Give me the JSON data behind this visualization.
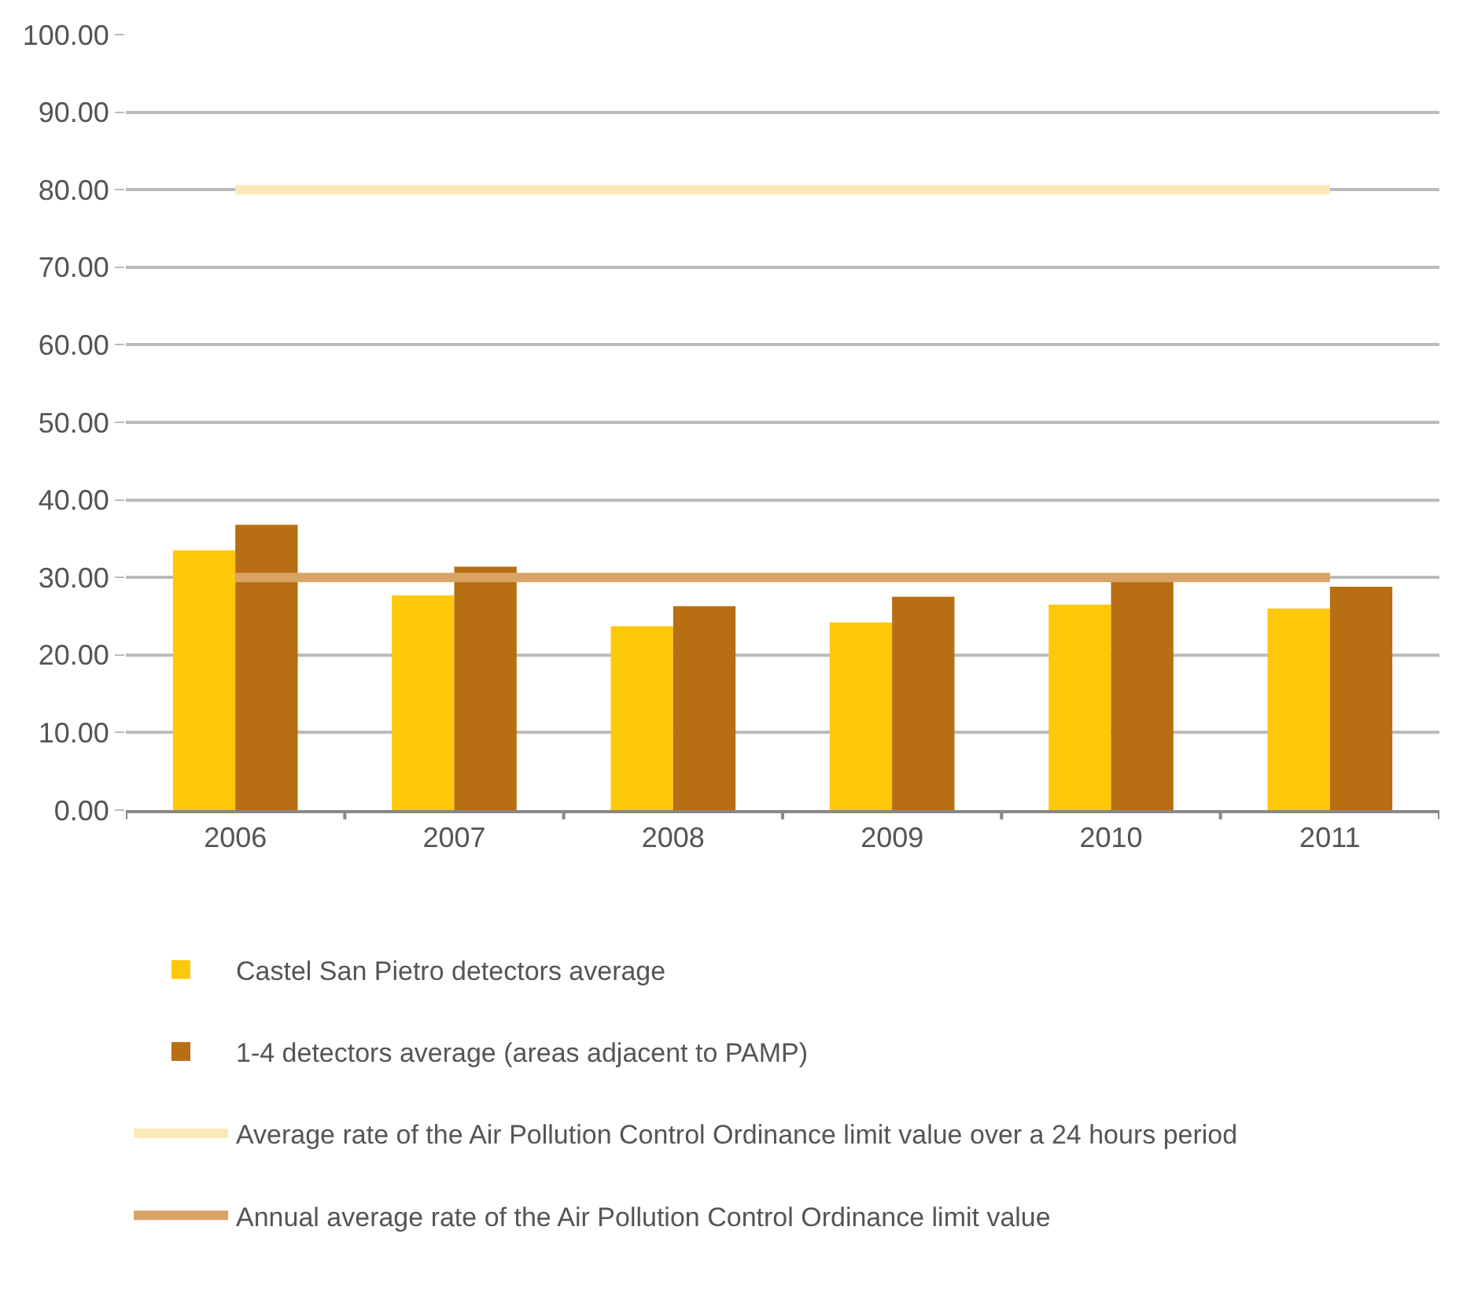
{
  "chart_data": {
    "type": "bar",
    "categories": [
      "2006",
      "2007",
      "2008",
      "2009",
      "2010",
      "2011"
    ],
    "series": [
      {
        "name": "Castel San Pietro detectors average",
        "color": "#fec80a",
        "values": [
          33.5,
          27.7,
          23.7,
          24.2,
          26.5,
          26.0
        ]
      },
      {
        "name": "1-4 detectors average (areas adjacent to PAMP)",
        "color": "#b86e12",
        "values": [
          36.8,
          31.4,
          26.3,
          27.5,
          29.8,
          28.8
        ]
      },
      {
        "name": "Average rate of the Air Pollution Control Ordinance limit value over a 24 hours period",
        "type": "line",
        "color": "#fbe9b7",
        "values": [
          80,
          80,
          80,
          80,
          80,
          80
        ]
      },
      {
        "name": "Annual average rate of the Air Pollution Control Ordinance limit value",
        "type": "line",
        "color": "#d9a466",
        "values": [
          30,
          30,
          30,
          30,
          30,
          30
        ]
      }
    ],
    "ylim": [
      0,
      100
    ],
    "yticks": [
      {
        "value": 0,
        "label": "0.00"
      },
      {
        "value": 10,
        "label": "10.00"
      },
      {
        "value": 20,
        "label": "20.00"
      },
      {
        "value": 30,
        "label": "30.00"
      },
      {
        "value": 40,
        "label": "40.00"
      },
      {
        "value": 50,
        "label": "50.00"
      },
      {
        "value": 60,
        "label": "60.00"
      },
      {
        "value": 70,
        "label": "70.00"
      },
      {
        "value": 80,
        "label": "80.00"
      },
      {
        "value": 90,
        "label": "90.00"
      },
      {
        "value": 100,
        "label": "100.00"
      }
    ],
    "grid": "y",
    "legend": "bottom"
  }
}
